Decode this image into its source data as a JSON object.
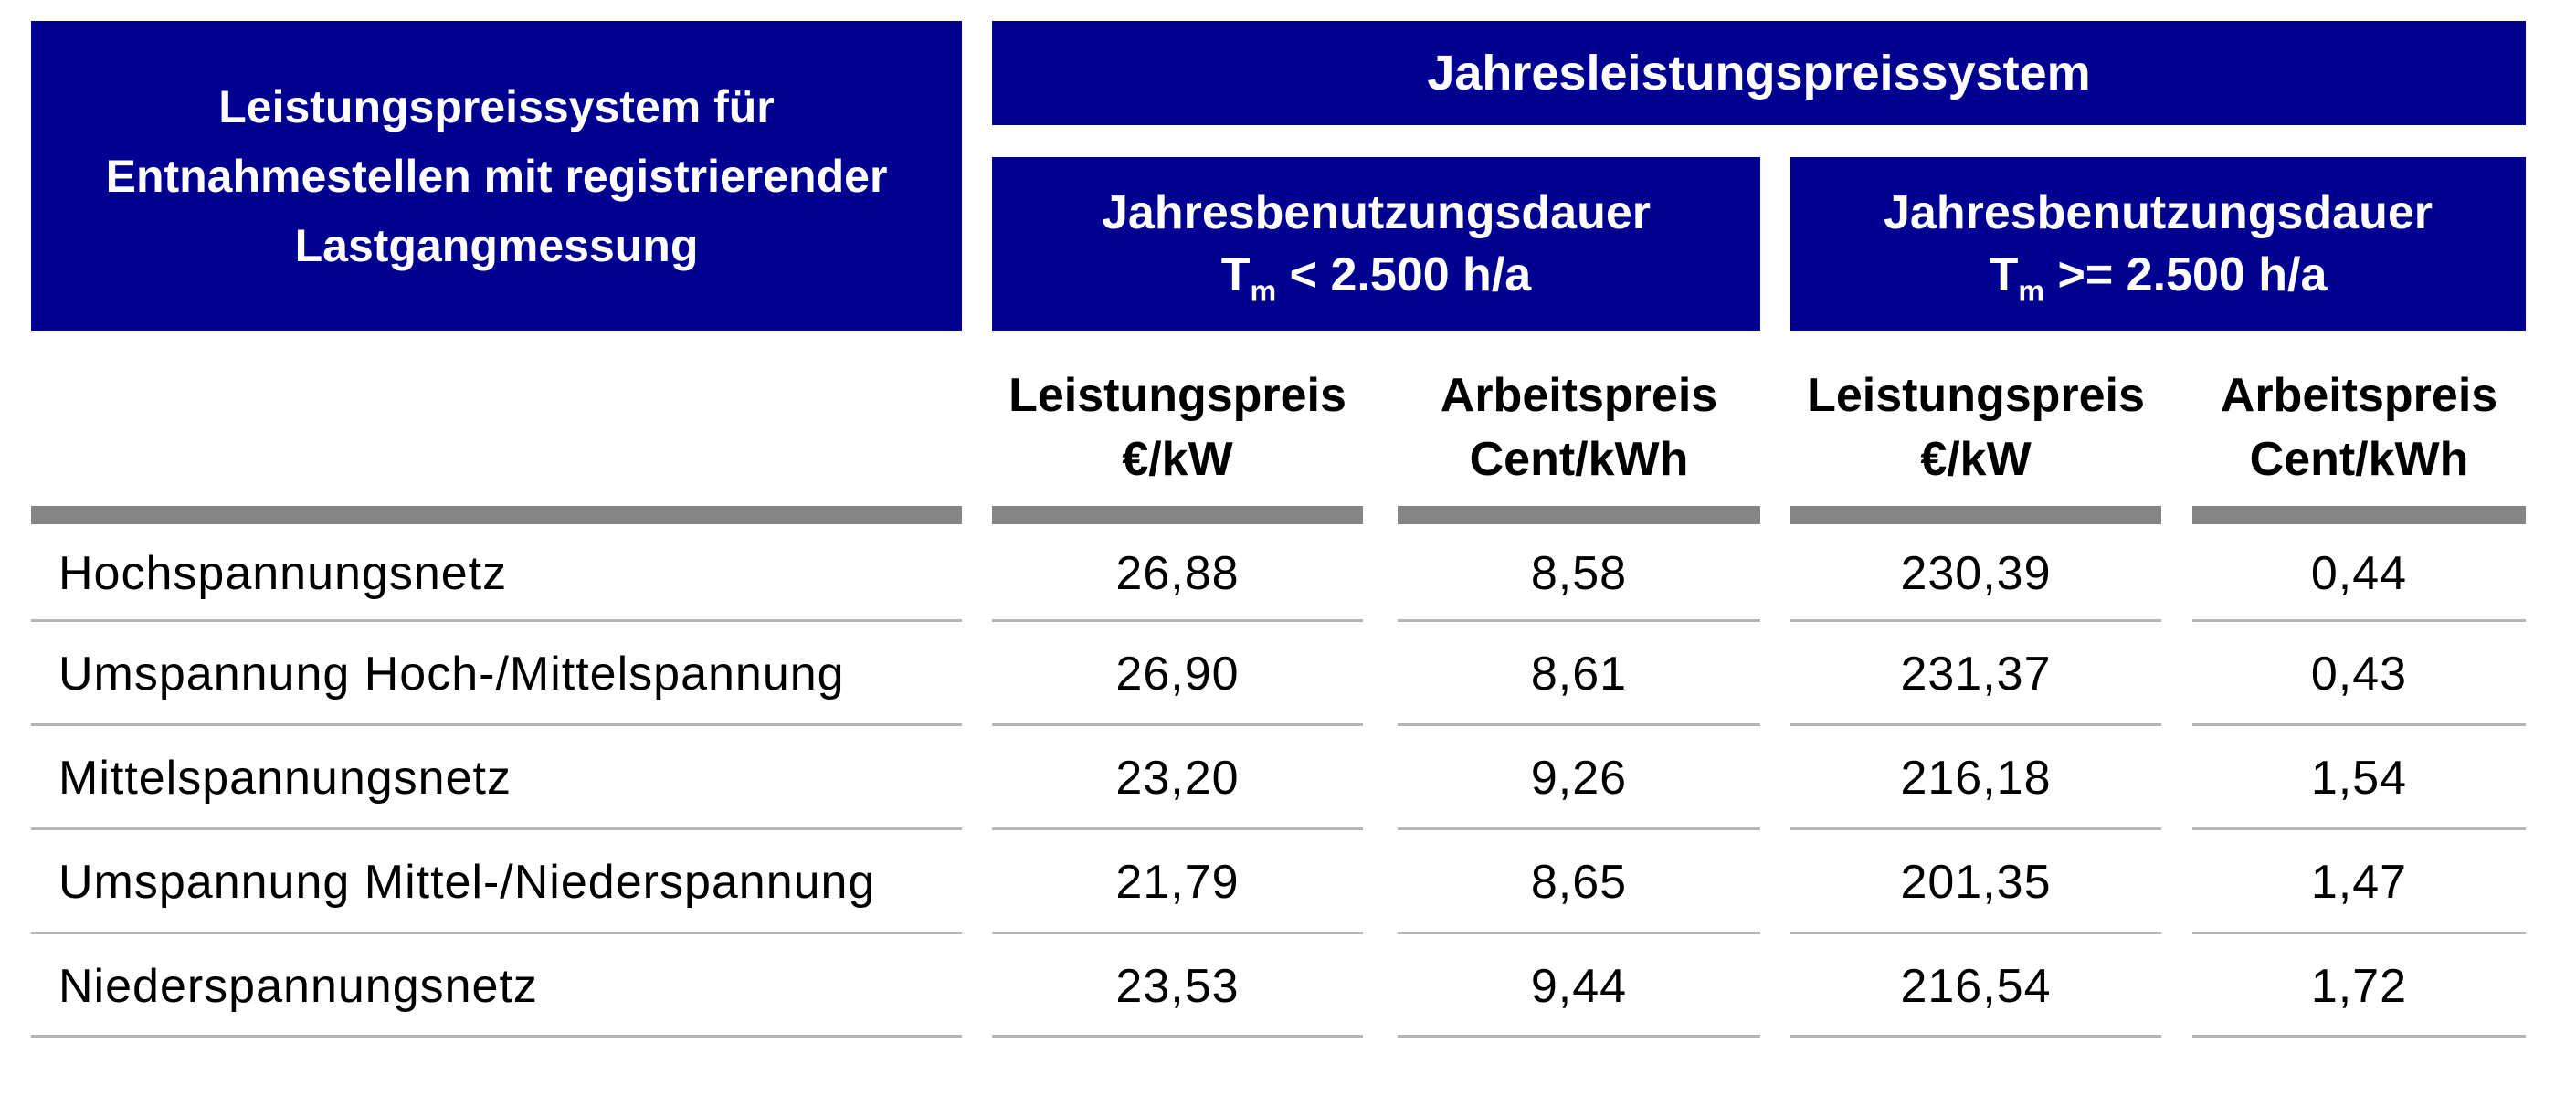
{
  "colors": {
    "header_bg": "#000091",
    "header_text": "#ffffff",
    "thick_rule": "#858585",
    "thin_rule": "#b5b5b5",
    "body_text": "#000000"
  },
  "header": {
    "left_title_lines": [
      "Leistungspreissystem für",
      "Entnahmestellen mit registrierender",
      "Lastgangmessung"
    ],
    "main_title": "Jahresleistungspreissystem",
    "subheaders": [
      {
        "line1": "Jahresbenutzungsdauer",
        "symbol": "T",
        "subscript": "m",
        "condition": "< 2.500 h/a"
      },
      {
        "line1": "Jahresbenutzungsdauer",
        "symbol": "T",
        "subscript": "m",
        "condition": ">= 2.500 h/a"
      }
    ]
  },
  "columns": [
    {
      "title": "Leistungspreis",
      "unit": "€/kW"
    },
    {
      "title": "Arbeitspreis",
      "unit": "Cent/kWh"
    },
    {
      "title": "Leistungspreis",
      "unit": "€/kW"
    },
    {
      "title": "Arbeitspreis",
      "unit": "Cent/kWh"
    }
  ],
  "rows": [
    {
      "label": "Hochspannungsnetz",
      "values": [
        "26,88",
        "8,58",
        "230,39",
        "0,44"
      ]
    },
    {
      "label": "Umspannung Hoch-/Mittelspannung",
      "values": [
        "26,90",
        "8,61",
        "231,37",
        "0,43"
      ]
    },
    {
      "label": "Mittelspannungsnetz",
      "values": [
        "23,20",
        "9,26",
        "216,18",
        "1,54"
      ]
    },
    {
      "label": "Umspannung Mittel-/Niederspannung",
      "values": [
        "21,79",
        "8,65",
        "201,35",
        "1,47"
      ]
    },
    {
      "label": "Niederspannungsnetz",
      "values": [
        "23,53",
        "9,44",
        "216,54",
        "1,72"
      ]
    }
  ]
}
